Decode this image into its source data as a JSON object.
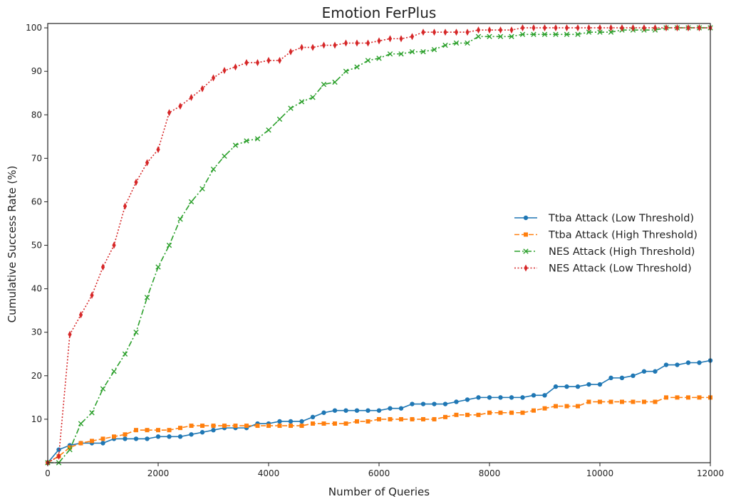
{
  "chart_data": {
    "type": "line",
    "title": "Emotion FerPlus",
    "xlabel": "Number of Queries",
    "ylabel": "Cumulative Success Rate (%)",
    "xlim": [
      0,
      12000
    ],
    "ylim": [
      0,
      101
    ],
    "xticks": [
      0,
      2000,
      4000,
      6000,
      8000,
      10000,
      12000
    ],
    "yticks": [
      10,
      20,
      30,
      40,
      50,
      60,
      70,
      80,
      90,
      100
    ],
    "grid": false,
    "legend_position": "center-right",
    "series": [
      {
        "name": "Ttba Attack (Low Threshold)",
        "color": "#1f77b4",
        "marker": "circle",
        "linestyle": "solid",
        "x": [
          0,
          200,
          400,
          600,
          800,
          1000,
          1200,
          1400,
          1600,
          1800,
          2000,
          2200,
          2400,
          2600,
          2800,
          3000,
          3200,
          3400,
          3600,
          3800,
          4000,
          4200,
          4400,
          4600,
          4800,
          5000,
          5200,
          5400,
          5600,
          5800,
          6000,
          6200,
          6400,
          6600,
          6800,
          7000,
          7200,
          7400,
          7600,
          7800,
          8000,
          8200,
          8400,
          8600,
          8800,
          9000,
          9200,
          9400,
          9600,
          9800,
          10000,
          10200,
          10400,
          10600,
          10800,
          11000,
          11200,
          11400,
          11600,
          11800,
          12000
        ],
        "y": [
          0,
          3,
          4,
          4.5,
          4.5,
          4.5,
          5.5,
          5.5,
          5.5,
          5.5,
          6,
          6,
          6,
          6.5,
          7,
          7.5,
          8,
          8,
          8,
          9,
          9,
          9.5,
          9.5,
          9.5,
          10.5,
          11.5,
          12,
          12,
          12,
          12,
          12,
          12.5,
          12.5,
          13.5,
          13.5,
          13.5,
          13.5,
          14,
          14.5,
          15,
          15,
          15,
          15,
          15,
          15.5,
          15.5,
          17.5,
          17.5,
          17.5,
          18,
          18,
          19.5,
          19.5,
          20,
          21,
          21,
          22.5,
          22.5,
          23,
          23,
          23.5
        ]
      },
      {
        "name": "Ttba Attack (High Threshold)",
        "color": "#ff7f0e",
        "marker": "square",
        "linestyle": "dashed",
        "x": [
          0,
          200,
          400,
          600,
          800,
          1000,
          1200,
          1400,
          1600,
          1800,
          2000,
          2200,
          2400,
          2600,
          2800,
          3000,
          3200,
          3400,
          3600,
          3800,
          4000,
          4200,
          4400,
          4600,
          4800,
          5000,
          5200,
          5400,
          5600,
          5800,
          6000,
          6200,
          6400,
          6600,
          6800,
          7000,
          7200,
          7400,
          7600,
          7800,
          8000,
          8200,
          8400,
          8600,
          8800,
          9000,
          9200,
          9400,
          9600,
          9800,
          10000,
          10200,
          10400,
          10600,
          10800,
          11000,
          11200,
          11400,
          11600,
          11800,
          12000
        ],
        "y": [
          0,
          1.5,
          3.5,
          4.5,
          5,
          5.5,
          6,
          6.5,
          7.5,
          7.5,
          7.5,
          7.5,
          8,
          8.5,
          8.5,
          8.5,
          8.5,
          8.5,
          8.5,
          8.5,
          8.5,
          8.5,
          8.5,
          8.5,
          9,
          9,
          9,
          9,
          9.5,
          9.5,
          10,
          10,
          10,
          10,
          10,
          10,
          10.5,
          11,
          11,
          11,
          11.5,
          11.5,
          11.5,
          11.5,
          12,
          12.5,
          13,
          13,
          13,
          14,
          14,
          14,
          14,
          14,
          14,
          14,
          15,
          15,
          15,
          15,
          15
        ]
      },
      {
        "name": "NES Attack (High Threshold)",
        "color": "#2ca02c",
        "marker": "x",
        "linestyle": "dashdot",
        "x": [
          0,
          200,
          400,
          600,
          800,
          1000,
          1200,
          1400,
          1600,
          1800,
          2000,
          2200,
          2400,
          2600,
          2800,
          3000,
          3200,
          3400,
          3600,
          3800,
          4000,
          4200,
          4400,
          4600,
          4800,
          5000,
          5200,
          5400,
          5600,
          5800,
          6000,
          6200,
          6400,
          6600,
          6800,
          7000,
          7200,
          7400,
          7600,
          7800,
          8000,
          8200,
          8400,
          8600,
          8800,
          9000,
          9200,
          9400,
          9600,
          9800,
          10000,
          10200,
          10400,
          10600,
          10800,
          11000,
          11200,
          11400,
          11600,
          11800,
          12000
        ],
        "y": [
          0,
          0,
          3,
          9,
          11.5,
          17,
          21,
          25,
          30,
          38,
          45,
          50,
          56,
          60,
          63,
          67.5,
          70.5,
          73,
          74,
          74.5,
          76.5,
          79,
          81.5,
          83,
          84,
          87,
          87.5,
          90,
          91,
          92.5,
          93,
          94,
          94,
          94.5,
          94.5,
          95,
          96,
          96.5,
          96.5,
          98,
          98,
          98,
          98,
          98.5,
          98.5,
          98.5,
          98.5,
          98.5,
          98.5,
          99,
          99,
          99,
          99.5,
          99.5,
          99.5,
          99.5,
          100,
          100,
          100,
          100,
          100
        ]
      },
      {
        "name": "NES Attack (Low Threshold)",
        "color": "#d62728",
        "marker": "thin_diamond",
        "linestyle": "dotted",
        "x": [
          0,
          200,
          400,
          600,
          800,
          1000,
          1200,
          1400,
          1600,
          1800,
          2000,
          2200,
          2400,
          2600,
          2800,
          3000,
          3200,
          3400,
          3600,
          3800,
          4000,
          4200,
          4400,
          4600,
          4800,
          5000,
          5200,
          5400,
          5600,
          5800,
          6000,
          6200,
          6400,
          6600,
          6800,
          7000,
          7200,
          7400,
          7600,
          7800,
          8000,
          8200,
          8400,
          8600,
          8800,
          9000,
          9200,
          9400,
          9600,
          9800,
          10000,
          10200,
          10400,
          10600,
          10800,
          11000,
          11200,
          11400,
          11600,
          11800,
          12000
        ],
        "y": [
          0,
          1.5,
          29.5,
          34,
          38.5,
          45,
          50,
          59,
          64.5,
          69,
          72,
          80.5,
          82,
          84,
          86,
          88.5,
          90.2,
          91,
          92,
          92,
          92.5,
          92.5,
          94.5,
          95.5,
          95.5,
          96,
          96,
          96.5,
          96.5,
          96.5,
          97,
          97.5,
          97.5,
          98,
          99,
          99,
          99,
          99,
          99,
          99.5,
          99.5,
          99.5,
          99.5,
          100,
          100,
          100,
          100,
          100,
          100,
          100,
          100,
          100,
          100,
          100,
          100,
          100,
          100,
          100,
          100,
          100,
          100
        ]
      }
    ]
  }
}
